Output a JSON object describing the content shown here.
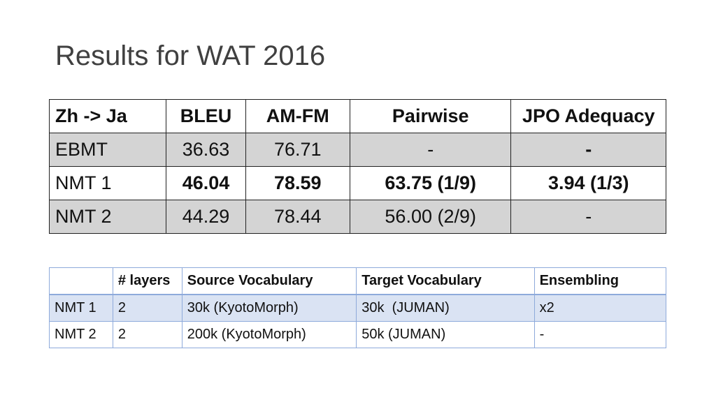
{
  "slide": {
    "title": "Results for WAT 2016"
  },
  "results_table": {
    "headers": [
      "Zh -> Ja",
      "BLEU",
      "AM-FM",
      "Pairwise",
      "JPO Adequacy"
    ],
    "rows": [
      {
        "system": "EBMT",
        "bleu": "36.63",
        "amfm": "76.71",
        "pairwise": "-",
        "jpo": "-"
      },
      {
        "system": "NMT 1",
        "bleu": "46.04",
        "amfm": "78.59",
        "pairwise": "63.75 (1/9)",
        "jpo": "3.94 (1/3)"
      },
      {
        "system": "NMT 2",
        "bleu": "44.29",
        "amfm": "78.44",
        "pairwise": "56.00 (2/9)",
        "jpo": "-"
      }
    ]
  },
  "config_table": {
    "headers": [
      "",
      "# layers",
      "Source Vocabulary",
      "Target Vocabulary",
      "Ensembling"
    ],
    "rows": [
      {
        "model": "NMT 1",
        "layers": "2",
        "source_vocab": "30k (KyotoMorph)",
        "target_vocab": "30k  (JUMAN)",
        "ensembling": "x2"
      },
      {
        "model": "NMT 2",
        "layers": "2",
        "source_vocab": "200k (KyotoMorph)",
        "target_vocab": "50k (JUMAN)",
        "ensembling": "-"
      }
    ]
  },
  "colors": {
    "title": "#404040",
    "results_shade": "#d4d4d4",
    "config_border": "#8eaadb",
    "config_band": "#dae3f3"
  }
}
